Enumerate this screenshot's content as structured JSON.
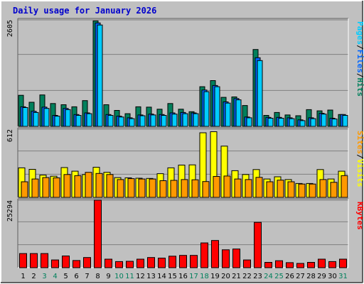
{
  "chart_data": {
    "type": "bar",
    "title": "Daily usage for January 2026",
    "categories": [
      "1",
      "2",
      "3",
      "4",
      "5",
      "6",
      "7",
      "8",
      "9",
      "10",
      "11",
      "12",
      "13",
      "14",
      "15",
      "16",
      "17",
      "18",
      "19",
      "20",
      "21",
      "22",
      "23",
      "24",
      "25",
      "26",
      "27",
      "28",
      "29",
      "30",
      "31"
    ],
    "weekend_days": [
      "3",
      "4",
      "10",
      "11",
      "17",
      "18",
      "24",
      "25",
      "31"
    ],
    "panels": [
      {
        "id": "hits-files-pages",
        "ymax_label": "2605",
        "ymax": 2605,
        "side_label": [
          "Pages",
          "/",
          "Files",
          "/",
          "Hits"
        ],
        "side_colors": [
          "#00ccff",
          "#000000",
          "#0066ff",
          "#000000",
          "#00805c"
        ],
        "series": [
          {
            "name": "Hits",
            "color": "#00805c",
            "values": [
              760,
              590,
              770,
              560,
              530,
              480,
              630,
              2580,
              530,
              390,
              310,
              480,
              470,
              420,
              560,
              420,
              360,
              970,
              1120,
              710,
              720,
              510,
              1880,
              270,
              340,
              280,
              260,
              410,
              380,
              400,
              290
            ]
          },
          {
            "name": "Files",
            "color": "#0066ff",
            "values": [
              480,
              370,
              470,
              270,
              440,
              290,
              330,
              2530,
              290,
              250,
              210,
              280,
              300,
              290,
              330,
              340,
              330,
              890,
              1000,
              600,
              680,
              230,
              1680,
              220,
              220,
              210,
              160,
              210,
              320,
              200,
              290
            ]
          },
          {
            "name": "Pages",
            "color": "#00ccff",
            "values": [
              460,
              340,
              440,
              250,
              410,
              270,
              310,
              2480,
              270,
              230,
              190,
              260,
              280,
              270,
              300,
              310,
              310,
              850,
              970,
              570,
              650,
              210,
              1610,
              200,
              200,
              190,
              140,
              190,
              300,
              180,
              270
            ]
          }
        ]
      },
      {
        "id": "visits-sites",
        "ymax_label": "612",
        "ymax": 612,
        "side_label": [
          "Sites",
          "/",
          "Visits"
        ],
        "side_colors": [
          "#ff9900",
          "#000000",
          "#ffff00"
        ],
        "series": [
          {
            "name": "Visits",
            "color": "#ffff00",
            "values": [
              265,
              252,
              200,
              190,
              268,
              235,
              205,
              270,
              225,
              177,
              175,
              172,
              170,
              213,
              265,
              290,
              292,
              580,
              590,
              460,
              240,
              205,
              250,
              165,
              185,
              160,
              125,
              125,
              250,
              165,
              235
            ]
          },
          {
            "name": "Sites",
            "color": "#ff9900",
            "values": [
              140,
              165,
              178,
              175,
              205,
              195,
              225,
              215,
              205,
              160,
              168,
              165,
              165,
              150,
              153,
              160,
              158,
              142,
              188,
              192,
              165,
              160,
              180,
              140,
              155,
              140,
              120,
              120,
              160,
              135,
              195
            ]
          }
        ]
      },
      {
        "id": "kbytes",
        "ymax_label": "25294",
        "ymax": 25294,
        "side_label": [
          "KBytes"
        ],
        "side_colors": [
          "#ff0000"
        ],
        "series": [
          {
            "name": "KBytes",
            "color": "#ff0000",
            "values": [
              5300,
              5300,
              5300,
              2900,
              4400,
              2700,
              3800,
              25294,
              3200,
              2300,
              2400,
              3200,
              3800,
              3600,
              4300,
              4600,
              4600,
              9300,
              10200,
              6700,
              7000,
              2900,
              17000,
              2000,
              2600,
              1900,
              1600,
              2000,
              3200,
              2300,
              3200
            ]
          }
        ]
      }
    ]
  }
}
